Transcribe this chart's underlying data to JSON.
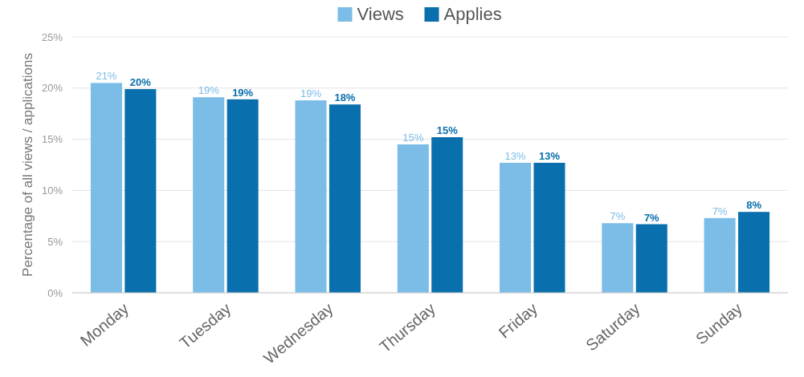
{
  "chart_data": {
    "type": "bar",
    "ylabel": "Percentage of all views / applications",
    "categories": [
      "Monday",
      "Tuesday",
      "Wednesday",
      "Thursday",
      "Friday",
      "Saturday",
      "Sunday"
    ],
    "series": [
      {
        "name": "Views",
        "color": "#7bbde6",
        "values": [
          20.5,
          19.1,
          18.8,
          14.5,
          12.7,
          6.8,
          7.3
        ],
        "value_labels": [
          "21%",
          "19%",
          "19%",
          "15%",
          "13%",
          "7%",
          "7%"
        ]
      },
      {
        "name": "Applies",
        "color": "#0a6fad",
        "values": [
          19.9,
          18.9,
          18.4,
          15.2,
          12.7,
          6.7,
          7.9
        ],
        "value_labels": [
          "20%",
          "19%",
          "18%",
          "15%",
          "13%",
          "7%",
          "8%"
        ]
      }
    ],
    "ylim": [
      0,
      25
    ],
    "yticks": [
      {
        "value": 0,
        "label": "0%"
      },
      {
        "value": 5,
        "label": "5%"
      },
      {
        "value": 10,
        "label": "10%"
      },
      {
        "value": 15,
        "label": "15%"
      },
      {
        "value": 20,
        "label": "20%"
      },
      {
        "value": 25,
        "label": "25%"
      }
    ],
    "grid": "y",
    "legend": "top"
  }
}
